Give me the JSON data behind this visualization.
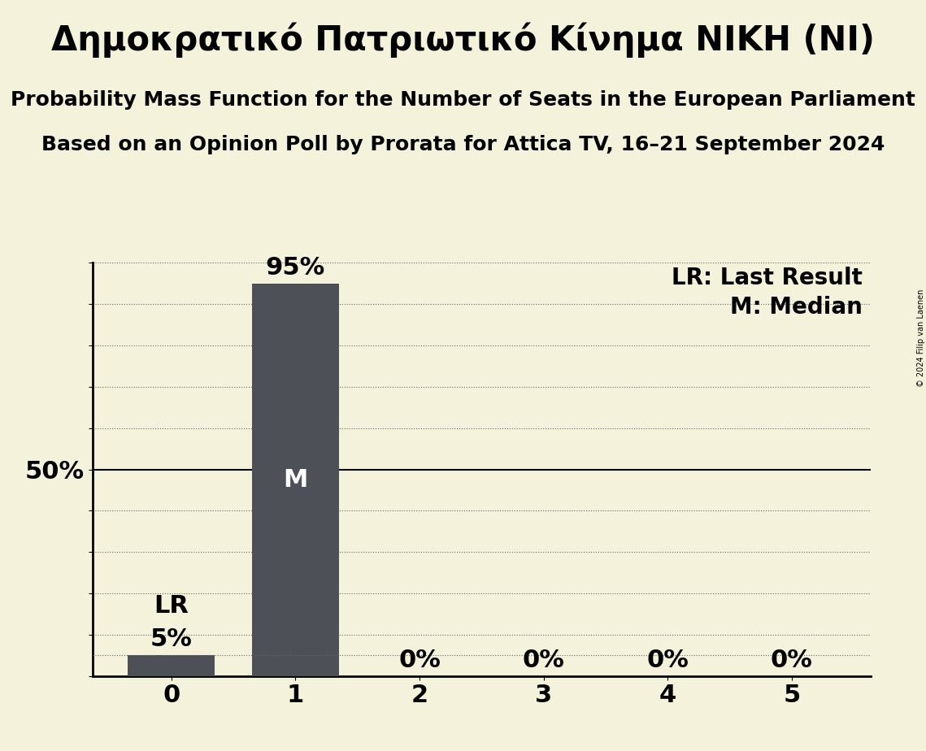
{
  "title": "Δημοκρατικό Πατριωτικό Κίνημα ΝΙΚΗ (NI)",
  "subtitle1": "Probability Mass Function for the Number of Seats in the European Parliament",
  "subtitle2": "Based on an Opinion Poll by Prorata for Attica TV, 16–21 September 2024",
  "copyright": "© 2024 Filip van Laenen",
  "categories": [
    0,
    1,
    2,
    3,
    4,
    5
  ],
  "values": [
    0.05,
    0.95,
    0.0,
    0.0,
    0.0,
    0.0
  ],
  "bar_color": "#4d5157",
  "background_color": "#f5f2dc",
  "median_seat": 1,
  "last_result_seat": 0,
  "median_label": "M",
  "last_result_label": "LR",
  "legend_lr": "LR: Last Result",
  "legend_m": "M: Median",
  "title_fontsize": 30,
  "subtitle_fontsize": 18,
  "label_fontsize": 22,
  "tick_fontsize": 22,
  "bar_label_color_inside": "#ffffff",
  "bar_label_color_outside": "#000000",
  "dotted_line_color": "#666666",
  "solid_line_color": "#000000",
  "ylim_max": 1.0
}
